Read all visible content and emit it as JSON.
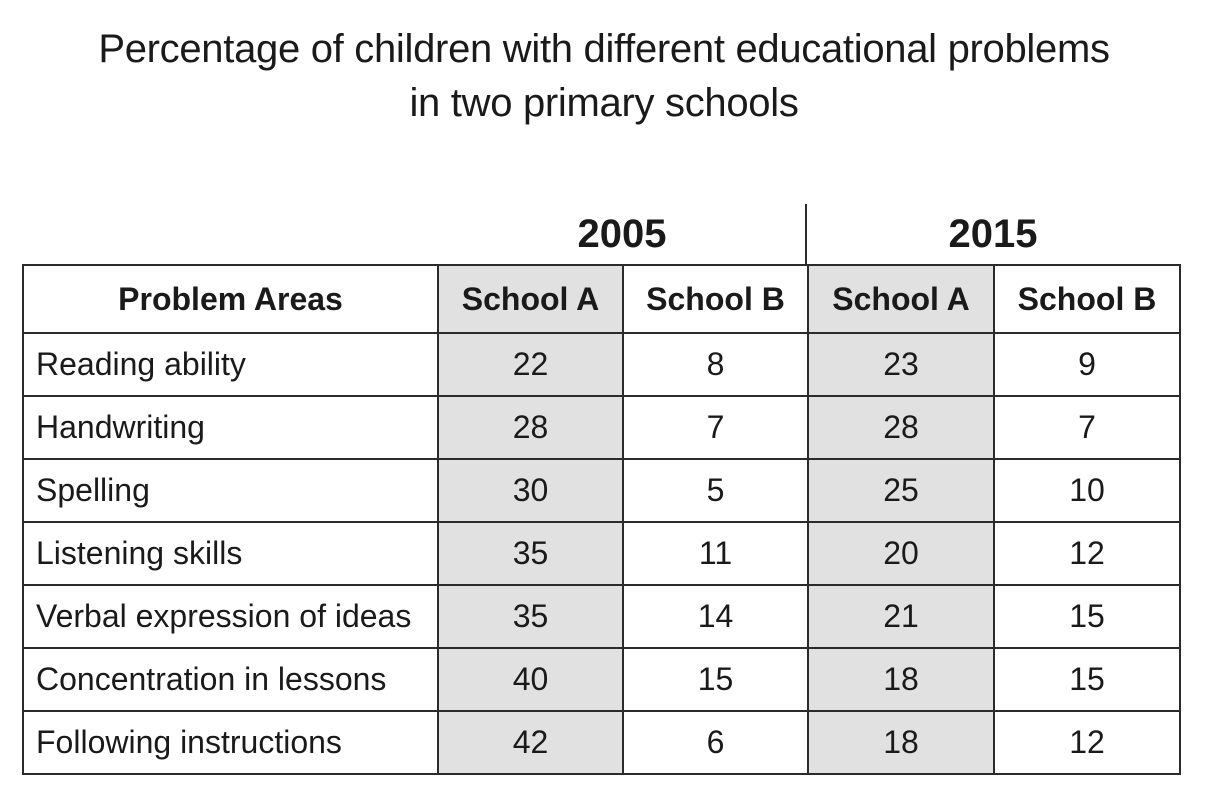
{
  "chart_data": {
    "type": "table",
    "title_line1": "Percentage of children with different educational problems",
    "title_line2": "in two primary schools",
    "years": [
      "2005",
      "2015"
    ],
    "header": {
      "problem_areas": "Problem Areas",
      "col_2005_a": "School A",
      "col_2005_b": "School B",
      "col_2015_a": "School A",
      "col_2015_b": "School B"
    },
    "rows": [
      {
        "area": "Reading ability",
        "y2005_a": "22",
        "y2005_b": "8",
        "y2015_a": "23",
        "y2015_b": "9"
      },
      {
        "area": "Handwriting",
        "y2005_a": "28",
        "y2005_b": "7",
        "y2015_a": "28",
        "y2015_b": "7"
      },
      {
        "area": "Spelling",
        "y2005_a": "30",
        "y2005_b": "5",
        "y2015_a": "25",
        "y2015_b": "10"
      },
      {
        "area": "Listening skills",
        "y2005_a": "35",
        "y2005_b": "11",
        "y2015_a": "20",
        "y2015_b": "12"
      },
      {
        "area": "Verbal expression of ideas",
        "y2005_a": "35",
        "y2005_b": "14",
        "y2015_a": "21",
        "y2015_b": "15"
      },
      {
        "area": "Concentration in lessons",
        "y2005_a": "40",
        "y2005_b": "15",
        "y2015_a": "18",
        "y2015_b": "15"
      },
      {
        "area": "Following instructions",
        "y2005_a": "42",
        "y2005_b": "6",
        "y2015_a": "18",
        "y2015_b": "12"
      }
    ]
  },
  "colors": {
    "school_a_shade": "#e1e1e1",
    "border": "#2b2b2b",
    "text": "#1a1a1a"
  }
}
